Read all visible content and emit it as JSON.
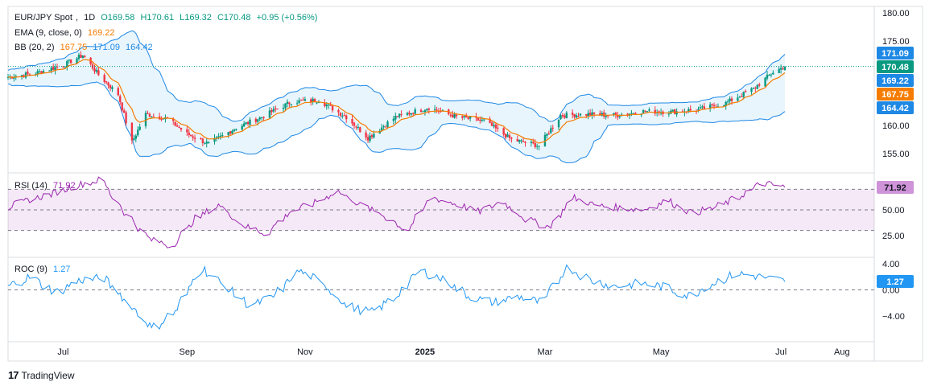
{
  "instrument": {
    "symbol": "EUR/JPY Spot",
    "interval": "1D",
    "open": "O169.58",
    "high": "H170.61",
    "low": "L169.32",
    "close": "C170.48",
    "change": "+0.95 (+0.56%)"
  },
  "ema": {
    "label": "EMA (9, close, 0)",
    "value": "169.22",
    "color": "#f57c00"
  },
  "bb": {
    "label": "BB (20, 2)",
    "basis": "167.75",
    "upper": "171.09",
    "lower": "164.42",
    "color": "#1e88e5",
    "fill": "#e3f2fd"
  },
  "rsi": {
    "label": "RSI (14)",
    "value": "71.92",
    "color": "#9c27b0"
  },
  "roc": {
    "label": "ROC (9)",
    "value": "1.27",
    "color": "#2196f3"
  },
  "price_badges": [
    {
      "text": "171.09",
      "bg": "#1e88e5"
    },
    {
      "text": "170.48",
      "bg": "#089981"
    },
    {
      "text": "169.22",
      "bg": "#1e88e5"
    },
    {
      "text": "167.75",
      "bg": "#f57c00"
    },
    {
      "text": "164.42",
      "bg": "#1e88e5"
    }
  ],
  "rsi_badge": {
    "text": "71.92",
    "bg": "#ce93d8"
  },
  "roc_badge": {
    "text": "1.27",
    "bg": "#2196f3"
  },
  "price_axis_ticks": [
    "180.00",
    "175.00",
    "160.00",
    "155.00"
  ],
  "rsi_axis_ticks": [
    "75.00",
    "50.00",
    "25.00"
  ],
  "roc_axis_ticks": [
    "4.00",
    "0.00",
    "−4.00"
  ],
  "x_axis_labels": [
    "Jul",
    "Sep",
    "Nov",
    "2025",
    "Mar",
    "May",
    "Jul",
    "Aug"
  ],
  "brand": "TradingView",
  "chart_data": [
    {
      "type": "candlestick",
      "title": "EUR/JPY Spot, 1D",
      "x_range": [
        "2024-06",
        "2025-08"
      ],
      "ylim": [
        152,
        181
      ],
      "price_path": [
        [
          "2024-06-03",
          168.6
        ],
        [
          "2024-06-17",
          169.3
        ],
        [
          "2024-07-01",
          170.7
        ],
        [
          "2024-07-11",
          172.5
        ],
        [
          "2024-07-19",
          169.0
        ],
        [
          "2024-07-29",
          165.5
        ],
        [
          "2024-08-05",
          157.0
        ],
        [
          "2024-08-12",
          162.0
        ],
        [
          "2024-08-23",
          161.2
        ],
        [
          "2024-09-02",
          158.5
        ],
        [
          "2024-09-13",
          156.7
        ],
        [
          "2024-09-27",
          159.6
        ],
        [
          "2024-10-10",
          161.5
        ],
        [
          "2024-10-25",
          164.2
        ],
        [
          "2024-11-08",
          164.5
        ],
        [
          "2024-11-22",
          161.5
        ],
        [
          "2024-12-03",
          157.8
        ],
        [
          "2024-12-17",
          161.5
        ],
        [
          "2025-01-03",
          163.2
        ],
        [
          "2025-01-17",
          161.5
        ],
        [
          "2025-01-31",
          160.8
        ],
        [
          "2025-02-14",
          157.5
        ],
        [
          "2025-02-28",
          156.4
        ],
        [
          "2025-03-11",
          161.8
        ],
        [
          "2025-03-25",
          162.0
        ],
        [
          "2025-04-08",
          161.8
        ],
        [
          "2025-04-22",
          162.5
        ],
        [
          "2025-05-06",
          162.4
        ],
        [
          "2025-05-20",
          162.8
        ],
        [
          "2025-06-03",
          164.0
        ],
        [
          "2025-06-17",
          166.5
        ],
        [
          "2025-06-27",
          169.5
        ],
        [
          "2025-07-03",
          170.48
        ]
      ],
      "ema_9_last": 169.22,
      "bb_20_2_last": {
        "upper": 171.09,
        "basis": 167.75,
        "lower": 164.42
      }
    },
    {
      "type": "line",
      "title": "RSI (14)",
      "ylim": [
        10,
        82
      ],
      "levels": [
        70,
        50,
        30
      ],
      "series": [
        {
          "name": "RSI (14)",
          "values": [
            52,
            60,
            66,
            74,
            79,
            48,
            22,
            15,
            41,
            55,
            35,
            27,
            48,
            56,
            68,
            55,
            44,
            30,
            62,
            56,
            48,
            58,
            41,
            33,
            62,
            54,
            52,
            50,
            59,
            47,
            52,
            62,
            76,
            71.92
          ]
        }
      ]
    },
    {
      "type": "line",
      "title": "ROC (9)",
      "ylim": [
        -7.5,
        5
      ],
      "levels": [
        0
      ],
      "series": [
        {
          "name": "ROC (9)",
          "values": [
            0.5,
            2.0,
            -0.5,
            1.5,
            1.8,
            -2.0,
            -6.0,
            -3.0,
            3.5,
            0.5,
            -2.5,
            -1.0,
            3.0,
            1.0,
            -2.5,
            -3.5,
            -1.0,
            3.0,
            1.5,
            -1.0,
            -2.0,
            -1.0,
            -2.0,
            3.5,
            1.5,
            0.5,
            1.0,
            0.5,
            -1.0,
            1.0,
            2.5,
            2.0,
            1.27
          ]
        }
      ]
    }
  ]
}
